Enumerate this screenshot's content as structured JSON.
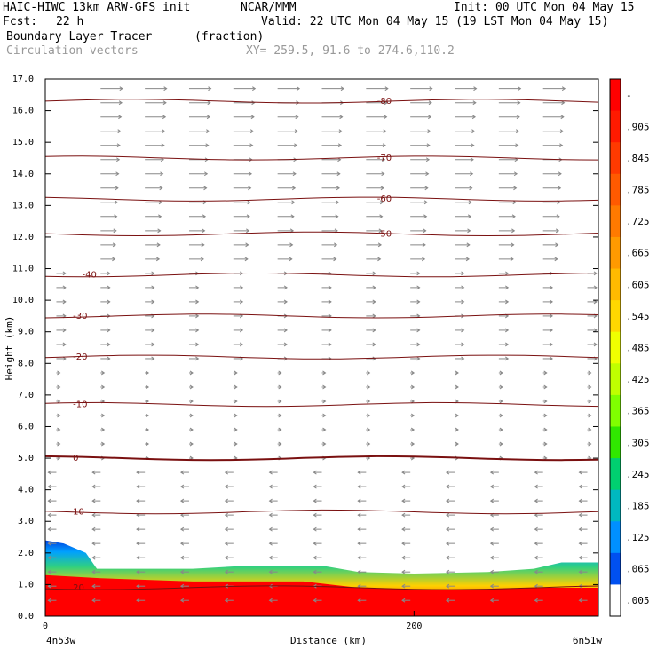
{
  "header": {
    "title_left": "HAIC-HIWC 13km ARW-GFS init",
    "org": "NCAR/MMM",
    "init": "Init: 00 UTC Mon 04 May 15",
    "fcst_label": "Fcst:",
    "fcst_value": "22 h",
    "valid": "Valid: 22 UTC Mon 04 May 15 (19 LST Mon 04 May 15)",
    "field_name": "Boundary Layer Tracer",
    "field_units": "(fraction)",
    "vector_name": "Circulation vectors",
    "xy": "XY= 259.5, 91.6 to 274.6,110.2"
  },
  "colors": {
    "contour": "#7a1010",
    "vector": "#888888"
  },
  "chart_data": {
    "type": "cross-section",
    "title": "Boundary Layer Tracer",
    "xlabel": "Distance (km)",
    "ylabel": "Height (km)",
    "xlim": [
      0,
      300
    ],
    "ylim": [
      0,
      17
    ],
    "x_ticks": [
      {
        "value": 0,
        "label": "0"
      },
      {
        "value": 200,
        "label": "200"
      }
    ],
    "x_endpoints": {
      "left": "4n53w",
      "right": "6n51w"
    },
    "y_ticks": [
      "0.0",
      "1.0",
      "2.0",
      "3.0",
      "4.0",
      "5.0",
      "6.0",
      "7.0",
      "8.0",
      "9.0",
      "10.0",
      "11.0",
      "12.0",
      "13.0",
      "14.0",
      "15.0",
      "16.0",
      "17.0"
    ],
    "colorbar": {
      "labels": [
        "-",
        ".905",
        ".845",
        ".785",
        ".725",
        ".665",
        ".605",
        ".545",
        ".485",
        ".425",
        ".365",
        ".305",
        ".245",
        ".185",
        ".125",
        ".065",
        ".005"
      ],
      "colors": [
        "#ff0000",
        "#ff1a00",
        "#ff3a00",
        "#ff5a00",
        "#ff7a00",
        "#ff9a00",
        "#ffba00",
        "#ffd800",
        "#f0ff00",
        "#c0ff00",
        "#80ff00",
        "#30e800",
        "#00d070",
        "#00b8c0",
        "#0090ff",
        "#0050f0",
        "#ffffff"
      ]
    },
    "isotherms": [
      {
        "value": -80,
        "height": 16.3
      },
      {
        "value": -70,
        "height": 14.5
      },
      {
        "value": -60,
        "height": 13.2
      },
      {
        "value": -50,
        "height": 12.1
      },
      {
        "value": -40,
        "height": 10.8
      },
      {
        "value": -30,
        "height": 9.5
      },
      {
        "value": -20,
        "height": 8.2
      },
      {
        "value": -10,
        "height": 6.7
      },
      {
        "value": 0,
        "height": 5.0
      },
      {
        "value": 10,
        "height": 3.3
      },
      {
        "value": 20,
        "height": 0.9
      }
    ],
    "tracer_field": {
      "blue_top_km": [
        [
          0,
          2.4
        ],
        [
          10,
          2.3
        ],
        [
          22,
          2.0
        ],
        [
          28,
          1.5
        ],
        [
          45,
          1.5
        ],
        [
          80,
          1.5
        ],
        [
          110,
          1.6
        ],
        [
          135,
          1.6
        ],
        [
          150,
          1.6
        ],
        [
          170,
          1.4
        ],
        [
          200,
          1.35
        ],
        [
          240,
          1.4
        ],
        [
          265,
          1.5
        ],
        [
          280,
          1.7
        ],
        [
          300,
          1.7
        ]
      ],
      "red_top_km": [
        [
          0,
          1.3
        ],
        [
          30,
          1.2
        ],
        [
          80,
          1.1
        ],
        [
          140,
          1.1
        ],
        [
          170,
          0.9
        ],
        [
          200,
          0.85
        ],
        [
          240,
          0.85
        ],
        [
          270,
          0.9
        ],
        [
          290,
          0.9
        ],
        [
          300,
          0.9
        ]
      ]
    }
  }
}
